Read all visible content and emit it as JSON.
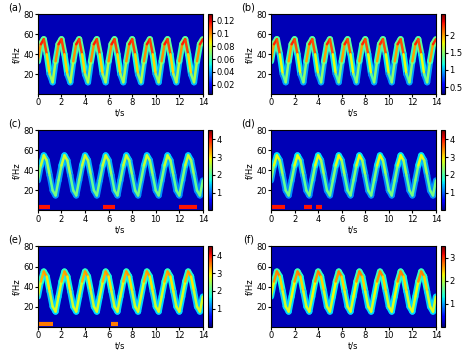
{
  "chart_data": [
    {
      "type": "spectrogram",
      "title": "(a)",
      "xlabel": "t/s",
      "ylabel": "f/Hz",
      "x": [
        0,
        0.25,
        0.5,
        0.75,
        1,
        1.25,
        1.5,
        1.75,
        2,
        2.25,
        2.5,
        2.75,
        3,
        3.25,
        3.5,
        3.75,
        4,
        4.25,
        4.5,
        4.75,
        5,
        5.25,
        5.5,
        5.75,
        6,
        6.25,
        6.5,
        6.75,
        7,
        7.25,
        7.5,
        7.75,
        8,
        8.25,
        8.5,
        8.75,
        9,
        9.25,
        9.5,
        9.75,
        10,
        10.25,
        10.5,
        10.75,
        11,
        11.25,
        11.5,
        11.75,
        12,
        12.25,
        12.5,
        12.75,
        13,
        13.25,
        13.5,
        13.75,
        14
      ],
      "values": [
        33,
        50,
        55,
        40,
        20,
        12,
        33,
        50,
        55,
        40,
        20,
        12,
        33,
        50,
        55,
        40,
        20,
        12,
        33,
        50,
        55,
        40,
        20,
        12,
        33,
        50,
        55,
        40,
        20,
        12,
        33,
        50,
        55,
        40,
        20,
        12,
        33,
        50,
        55,
        40,
        20,
        12,
        33,
        50,
        55,
        40,
        20,
        12,
        33,
        50,
        55,
        40,
        20,
        12,
        33,
        50,
        55
      ],
      "amplitude": [
        0.09,
        0.11,
        0.12,
        0.1,
        0.08,
        0.06,
        0.09,
        0.11,
        0.12,
        0.1,
        0.08,
        0.06,
        0.09,
        0.11,
        0.12,
        0.1,
        0.08,
        0.06,
        0.09,
        0.11,
        0.12,
        0.1,
        0.08,
        0.06,
        0.09,
        0.11,
        0.12,
        0.1,
        0.08,
        0.06,
        0.09,
        0.11,
        0.12,
        0.1,
        0.08,
        0.06,
        0.09,
        0.11,
        0.12,
        0.1,
        0.08,
        0.06,
        0.09,
        0.11,
        0.12,
        0.1,
        0.08,
        0.06,
        0.09,
        0.11,
        0.12,
        0.1,
        0.08,
        0.06,
        0.09,
        0.11,
        0.12
      ],
      "low_band": {
        "f": 3,
        "amplitude": 0.12,
        "segments": []
      },
      "xlim": [
        0,
        14
      ],
      "xticks": [
        0,
        2,
        4,
        6,
        8,
        10,
        12,
        14
      ],
      "ylim": [
        0,
        80
      ],
      "yticks": [
        20,
        40,
        60,
        80
      ],
      "colorbar_range": [
        0.005,
        0.13
      ],
      "colorbar_ticks": [
        0.02,
        0.04,
        0.06,
        0.08,
        0.1,
        0.12
      ]
    },
    {
      "type": "spectrogram",
      "title": "(b)",
      "xlabel": "t/s",
      "ylabel": "f/Hz",
      "x": [
        0,
        0.25,
        0.5,
        0.75,
        1,
        1.25,
        1.5,
        1.75,
        2,
        2.25,
        2.5,
        2.75,
        3,
        3.25,
        3.5,
        3.75,
        4,
        4.25,
        4.5,
        4.75,
        5,
        5.25,
        5.5,
        5.75,
        6,
        6.25,
        6.5,
        6.75,
        7,
        7.25,
        7.5,
        7.75,
        8,
        8.25,
        8.5,
        8.75,
        9,
        9.25,
        9.5,
        9.75,
        10,
        10.25,
        10.5,
        10.75,
        11,
        11.25,
        11.5,
        11.75,
        12,
        12.25,
        12.5,
        12.75,
        13,
        13.25,
        13.5,
        13.75,
        14
      ],
      "values": [
        33,
        50,
        55,
        40,
        20,
        12,
        33,
        50,
        55,
        40,
        20,
        12,
        33,
        50,
        55,
        40,
        20,
        12,
        33,
        50,
        55,
        40,
        20,
        12,
        33,
        50,
        55,
        40,
        20,
        12,
        33,
        50,
        55,
        40,
        20,
        12,
        33,
        50,
        55,
        40,
        20,
        12,
        33,
        50,
        55,
        40,
        20,
        12,
        33,
        50,
        55,
        40,
        20,
        12,
        33,
        50,
        55
      ],
      "amplitude": [
        1.8,
        2.2,
        2.4,
        2,
        1.5,
        1.2,
        1.8,
        2.2,
        2.4,
        2,
        1.5,
        1.2,
        1.8,
        2.2,
        2.4,
        2,
        1.5,
        1.2,
        1.8,
        2.2,
        2.4,
        2,
        1.5,
        1.2,
        1.8,
        2.2,
        2.4,
        2,
        1.5,
        1.2,
        1.8,
        2.2,
        2.4,
        2,
        1.5,
        1.2,
        1.8,
        2.2,
        2.4,
        2,
        1.5,
        1.2,
        1.8,
        2.2,
        2.4,
        2,
        1.5,
        1.2,
        1.8,
        2.2,
        2.4,
        2,
        1.5,
        1.2,
        1.8,
        2.2,
        2.4
      ],
      "low_band": {
        "f": 3,
        "amplitude": 2.4,
        "segments": []
      },
      "xlim": [
        0,
        14
      ],
      "xticks": [
        0,
        2,
        4,
        6,
        8,
        10,
        12,
        14
      ],
      "ylim": [
        0,
        80
      ],
      "yticks": [
        20,
        40,
        60,
        80
      ],
      "colorbar_range": [
        0.3,
        2.6
      ],
      "colorbar_ticks": [
        0.5,
        1,
        1.5,
        2
      ]
    },
    {
      "type": "spectrogram",
      "title": "(c)",
      "xlabel": "t/s",
      "ylabel": "f/Hz",
      "x": [
        0,
        0.25,
        0.5,
        0.75,
        1,
        1.25,
        1.5,
        1.75,
        2,
        2.25,
        2.5,
        2.75,
        3,
        3.25,
        3.5,
        3.75,
        4,
        4.25,
        4.5,
        4.75,
        5,
        5.25,
        5.5,
        5.75,
        6,
        6.25,
        6.5,
        6.75,
        7,
        7.25,
        7.5,
        7.75,
        8,
        8.25,
        8.5,
        8.75,
        9,
        9.25,
        9.5,
        9.75,
        10,
        10.25,
        10.5,
        10.75,
        11,
        11.25,
        11.5,
        11.75,
        12,
        12.25,
        12.5,
        12.75,
        13,
        13.25,
        13.5,
        13.75,
        14
      ],
      "values": [
        30,
        45,
        55,
        50,
        35,
        20,
        15,
        30,
        45,
        55,
        50,
        35,
        20,
        15,
        30,
        45,
        55,
        50,
        35,
        20,
        15,
        30,
        45,
        55,
        50,
        35,
        20,
        15,
        30,
        45,
        55,
        50,
        35,
        20,
        15,
        30,
        45,
        55,
        50,
        35,
        20,
        15,
        30,
        45,
        55,
        50,
        35,
        20,
        15,
        30,
        45,
        55,
        50,
        35,
        20,
        15,
        30
      ],
      "amplitude": [
        2,
        2.5,
        2.8,
        2.6,
        2.2,
        2,
        2.4,
        2,
        2.5,
        2.8,
        2.6,
        2.2,
        2,
        2.4,
        2,
        2.5,
        2.8,
        2.6,
        2.2,
        2,
        2.4,
        2,
        2.5,
        2.8,
        2.6,
        2.2,
        2,
        2.4,
        2,
        2.5,
        2.8,
        2.6,
        2.2,
        2,
        2.4,
        2,
        2.5,
        2.8,
        2.6,
        2.2,
        2,
        2.4,
        2,
        2.5,
        2.8,
        2.6,
        2.2,
        2,
        2.4,
        2,
        2.5,
        2.8,
        2.6,
        2.2,
        2,
        2.4,
        2
      ],
      "low_band": {
        "f": 3,
        "amplitude": 4,
        "segments": [
          [
            0,
            1
          ],
          [
            5.5,
            6.5
          ],
          [
            12,
            13.5
          ]
        ]
      },
      "xlim": [
        0,
        14
      ],
      "xticks": [
        0,
        2,
        4,
        6,
        8,
        10,
        12,
        14
      ],
      "ylim": [
        0,
        80
      ],
      "yticks": [
        20,
        40,
        60,
        80
      ],
      "colorbar_range": [
        0,
        4.5
      ],
      "colorbar_ticks": [
        1,
        2,
        3,
        4
      ]
    },
    {
      "type": "spectrogram",
      "title": "(d)",
      "xlabel": "t/s",
      "ylabel": "f/Hz",
      "x": [
        0,
        0.25,
        0.5,
        0.75,
        1,
        1.25,
        1.5,
        1.75,
        2,
        2.25,
        2.5,
        2.75,
        3,
        3.25,
        3.5,
        3.75,
        4,
        4.25,
        4.5,
        4.75,
        5,
        5.25,
        5.5,
        5.75,
        6,
        6.25,
        6.5,
        6.75,
        7,
        7.25,
        7.5,
        7.75,
        8,
        8.25,
        8.5,
        8.75,
        9,
        9.25,
        9.5,
        9.75,
        10,
        10.25,
        10.5,
        10.75,
        11,
        11.25,
        11.5,
        11.75,
        12,
        12.25,
        12.5,
        12.75,
        13,
        13.25,
        13.5,
        13.75,
        14
      ],
      "values": [
        30,
        45,
        55,
        50,
        35,
        20,
        15,
        30,
        45,
        55,
        50,
        35,
        20,
        15,
        30,
        45,
        55,
        50,
        35,
        20,
        15,
        30,
        45,
        55,
        50,
        35,
        20,
        15,
        30,
        45,
        55,
        50,
        35,
        20,
        15,
        30,
        45,
        55,
        50,
        35,
        20,
        15,
        30,
        45,
        55,
        50,
        35,
        20,
        15,
        30,
        45,
        55,
        50,
        35,
        20,
        15,
        30
      ],
      "amplitude": [
        2,
        2.6,
        3,
        2.7,
        2.2,
        2,
        2.4,
        2,
        2.6,
        3,
        2.7,
        2.2,
        2,
        2.4,
        2,
        2.6,
        3,
        2.7,
        2.2,
        2,
        2.4,
        2,
        2.6,
        3,
        2.7,
        2.2,
        2,
        2.4,
        2,
        2.6,
        3,
        2.7,
        2.2,
        2,
        2.4,
        2,
        2.6,
        3,
        2.7,
        2.2,
        2,
        2.4,
        2,
        2.6,
        3,
        2.7,
        2.2,
        2,
        2.4,
        2,
        2.6,
        3,
        2.7,
        2.2,
        2,
        2.4,
        2
      ],
      "low_band": {
        "f": 3,
        "amplitude": 4,
        "segments": [
          [
            0,
            1.2
          ],
          [
            2.8,
            3.5
          ],
          [
            3.8,
            4.3
          ]
        ]
      },
      "xlim": [
        0,
        14
      ],
      "xticks": [
        0,
        2,
        4,
        6,
        8,
        10,
        12,
        14
      ],
      "ylim": [
        0,
        80
      ],
      "yticks": [
        20,
        40,
        60,
        80
      ],
      "colorbar_range": [
        0,
        4.5
      ],
      "colorbar_ticks": [
        1,
        2,
        3,
        4
      ]
    },
    {
      "type": "spectrogram",
      "title": "(e)",
      "xlabel": "t/s",
      "ylabel": "f/Hz",
      "x": [
        0,
        0.25,
        0.5,
        0.75,
        1,
        1.25,
        1.5,
        1.75,
        2,
        2.25,
        2.5,
        2.75,
        3,
        3.25,
        3.5,
        3.75,
        4,
        4.25,
        4.5,
        4.75,
        5,
        5.25,
        5.5,
        5.75,
        6,
        6.25,
        6.5,
        6.75,
        7,
        7.25,
        7.5,
        7.75,
        8,
        8.25,
        8.5,
        8.75,
        9,
        9.25,
        9.5,
        9.75,
        10,
        10.25,
        10.5,
        10.75,
        11,
        11.25,
        11.5,
        11.75,
        12,
        12.25,
        12.5,
        12.75,
        13,
        13.25,
        13.5,
        13.75,
        14
      ],
      "values": [
        30,
        45,
        55,
        50,
        35,
        20,
        15,
        30,
        45,
        55,
        50,
        35,
        20,
        15,
        30,
        45,
        55,
        50,
        35,
        20,
        15,
        30,
        45,
        55,
        50,
        35,
        20,
        15,
        30,
        45,
        55,
        50,
        35,
        20,
        15,
        30,
        45,
        55,
        50,
        35,
        20,
        15,
        30,
        45,
        55,
        50,
        35,
        20,
        15,
        30,
        45,
        55,
        50,
        35,
        20,
        15,
        30
      ],
      "amplitude": [
        2.5,
        3,
        3.5,
        3.2,
        2.8,
        2.5,
        3,
        2.5,
        3,
        3.5,
        3.2,
        2.8,
        2.5,
        3,
        2.5,
        3,
        3.5,
        3.2,
        2.8,
        2.5,
        3,
        2.5,
        3,
        3.5,
        3.2,
        2.8,
        2.5,
        3,
        2.5,
        3,
        3.5,
        3.2,
        2.8,
        2.5,
        3,
        2.5,
        3,
        3.5,
        3.2,
        2.8,
        2.5,
        3,
        2.5,
        3,
        3.5,
        3.2,
        2.8,
        2.5,
        3,
        2.5,
        3,
        3.5,
        3.2,
        2.8,
        2.5,
        3,
        2.5
      ],
      "low_band": {
        "f": 3,
        "amplitude": 3.5,
        "segments": [
          [
            0,
            1.3
          ],
          [
            6.2,
            6.8
          ]
        ]
      },
      "xlim": [
        0,
        14
      ],
      "xticks": [
        0,
        2,
        4,
        6,
        8,
        10,
        12,
        14
      ],
      "ylim": [
        0,
        80
      ],
      "yticks": [
        20,
        40,
        60,
        80
      ],
      "colorbar_range": [
        0,
        4.5
      ],
      "colorbar_ticks": [
        1,
        2,
        3,
        4
      ]
    },
    {
      "type": "spectrogram",
      "title": "(f)",
      "xlabel": "t/s",
      "ylabel": "f/Hz",
      "x": [
        0,
        0.25,
        0.5,
        0.75,
        1,
        1.25,
        1.5,
        1.75,
        2,
        2.25,
        2.5,
        2.75,
        3,
        3.25,
        3.5,
        3.75,
        4,
        4.25,
        4.5,
        4.75,
        5,
        5.25,
        5.5,
        5.75,
        6,
        6.25,
        6.5,
        6.75,
        7,
        7.25,
        7.5,
        7.75,
        8,
        8.25,
        8.5,
        8.75,
        9,
        9.25,
        9.5,
        9.75,
        10,
        10.25,
        10.5,
        10.75,
        11,
        11.25,
        11.5,
        11.75,
        12,
        12.25,
        12.5,
        12.75,
        13,
        13.25,
        13.5,
        13.75,
        14
      ],
      "values": [
        30,
        45,
        55,
        50,
        35,
        20,
        15,
        30,
        45,
        55,
        50,
        35,
        20,
        15,
        30,
        45,
        55,
        50,
        35,
        20,
        15,
        30,
        45,
        55,
        50,
        35,
        20,
        15,
        30,
        45,
        55,
        50,
        35,
        20,
        15,
        30,
        45,
        55,
        50,
        35,
        20,
        15,
        30,
        45,
        55,
        50,
        35,
        20,
        15,
        30,
        45,
        55,
        50,
        35,
        20,
        15,
        30
      ],
      "amplitude": [
        2,
        2.5,
        2.8,
        2.6,
        2.2,
        2,
        2.3,
        2,
        2.5,
        2.8,
        2.6,
        2.2,
        2,
        2.3,
        2,
        2.5,
        2.8,
        2.6,
        2.2,
        2,
        2.3,
        2,
        2.5,
        2.8,
        2.6,
        2.2,
        2,
        2.3,
        2,
        2.5,
        2.8,
        2.6,
        2.2,
        2,
        2.3,
        2,
        2.5,
        2.8,
        2.6,
        2.2,
        2,
        2.3,
        2,
        2.5,
        2.8,
        2.6,
        2.2,
        2,
        2.3,
        2,
        2.5,
        2.8,
        2.6,
        2.2,
        2,
        2.3,
        2
      ],
      "low_band": {
        "f": 3,
        "amplitude": 3,
        "segments": []
      },
      "xlim": [
        0,
        14
      ],
      "xticks": [
        0,
        2,
        4,
        6,
        8,
        10,
        12,
        14
      ],
      "ylim": [
        0,
        80
      ],
      "yticks": [
        20,
        40,
        60,
        80
      ],
      "colorbar_range": [
        0,
        3.5
      ],
      "colorbar_ticks": [
        1,
        2,
        3
      ]
    }
  ]
}
